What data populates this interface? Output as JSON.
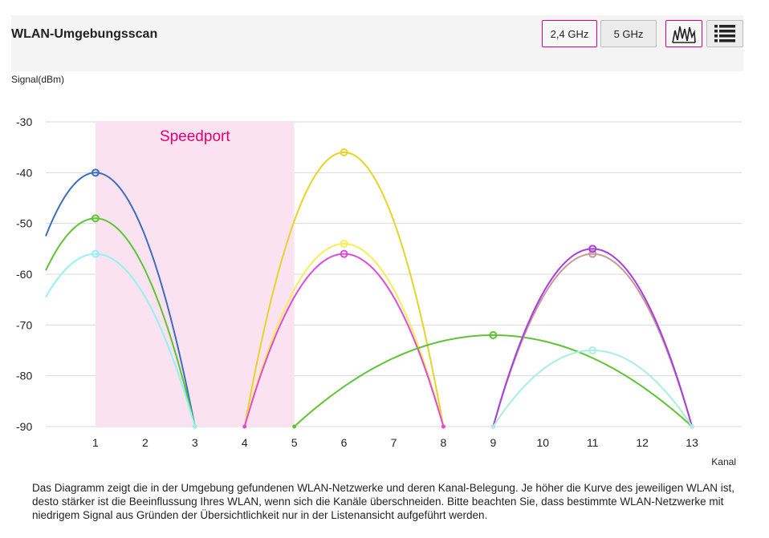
{
  "header": {
    "title": "WLAN-Umgebungsscan",
    "band_24_label": "2,4 GHz",
    "band_5_label": "5 GHz"
  },
  "icons": {
    "graph_view": "signal-graph-icon",
    "list_view": "list-icon"
  },
  "colors": {
    "accent": "#e20074",
    "highlight": "#fbe2f0",
    "grid": "#d9d9d9"
  },
  "chart_data": {
    "type": "line",
    "ylabel": "Signal(dBm)",
    "xlabel": "Kanal",
    "ylim": [
      -90,
      -30
    ],
    "yticks": [
      -30,
      -40,
      -50,
      -60,
      -70,
      -80,
      -90
    ],
    "xlim": [
      0,
      14
    ],
    "xticks": [
      1,
      2,
      3,
      4,
      5,
      6,
      7,
      8,
      9,
      10,
      11,
      12,
      13
    ],
    "grid": true,
    "highlight": {
      "label": "Speedport",
      "from": 1,
      "to": 5
    },
    "series": [
      {
        "center": 1,
        "peak": -40,
        "color": "#3a6fbf"
      },
      {
        "center": 1,
        "peak": -49,
        "color": "#5ec532"
      },
      {
        "center": 1,
        "peak": -56,
        "color": "#93f3f0"
      },
      {
        "center": 6,
        "peak": -36,
        "color": "#e8d327"
      },
      {
        "center": 6,
        "peak": -54,
        "color": "#f5ee55"
      },
      {
        "center": 6,
        "peak": -56,
        "color": "#e04bd3"
      },
      {
        "center": 9,
        "peak": -72,
        "color": "#5ec532",
        "from": 5,
        "to": 13
      },
      {
        "center": 11,
        "peak": -56,
        "color": "#c89898"
      },
      {
        "center": 11,
        "peak": -55,
        "color": "#a83ee0"
      },
      {
        "center": 11,
        "peak": -75,
        "color": "#a8efdf"
      }
    ]
  },
  "description": "Das Diagramm zeigt die in der Umgebung gefundenen WLAN-Netzwerke und deren Kanal-Belegung. Je höher die Kurve des jeweiligen WLAN ist, desto stärker ist die Beeinflussung Ihres WLAN, wenn sich die Kanäle überschneiden. Bitte beachten Sie, dass bestimmte WLAN-Netzwerke mit niedrigem Signal aus Gründen der Übersichtlichkeit nur in der Listenansicht aufgeführt werden."
}
